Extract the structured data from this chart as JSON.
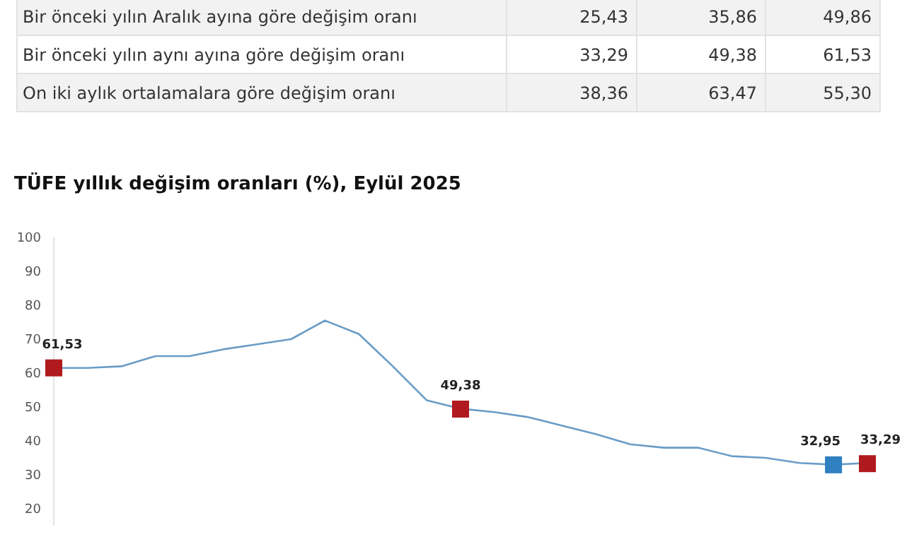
{
  "chart_data": [
    {
      "type": "other",
      "categories": [
        "Bir önceki yılın Aralık ayına göre değişim oranı",
        "Bir önceki yılın aynı ayına göre değişim oranı",
        "On iki aylık ortalamalara göre değişim oranı"
      ],
      "series": [
        {
          "colors": [
            "#f2f2f2",
            "#ffffff",
            "#f2f2f2"
          ],
          "values": [
            25.43,
            33.29,
            38.36
          ],
          "value_labels": [
            "25,43",
            "33,29",
            "38,36"
          ]
        },
        {
          "colors": [
            "#f2f2f2",
            "#ffffff",
            "#f2f2f2"
          ],
          "values": [
            35.86,
            49.38,
            63.47
          ],
          "value_labels": [
            "35,86",
            "49,38",
            "63,47"
          ]
        },
        {
          "colors": [
            "#f2f2f2",
            "#ffffff",
            "#f2f2f2"
          ],
          "values": [
            49.86,
            61.53,
            55.3
          ],
          "value_labels": [
            "49,86",
            "61,53",
            "55,30"
          ]
        }
      ]
    },
    {
      "type": "line",
      "title": "TÜFE yıllık değişim oranları (%), Eylül 2025",
      "categories": [
        null,
        null,
        null,
        null,
        null,
        null,
        null,
        null,
        null,
        null,
        null,
        null,
        null,
        null,
        null,
        null,
        null,
        null,
        null,
        null,
        null,
        null,
        null,
        null,
        null
      ],
      "series": [
        {
          "type": "line",
          "color": "#6a9cc6",
          "marker": "none",
          "values": [
            61.5,
            61.5,
            62,
            65,
            65,
            67,
            68.5,
            70,
            75.5,
            71.5,
            62,
            52,
            49.5,
            48.5,
            47,
            44.5,
            42,
            39,
            38,
            38,
            35.5,
            35,
            33.5,
            33,
            33.5
          ]
        },
        {
          "type": "scatter",
          "marker": "square",
          "colors": [
            "#b01a1f",
            null,
            null,
            null,
            null,
            null,
            null,
            null,
            null,
            null,
            null,
            null,
            "#b01a1f",
            null,
            null,
            null,
            null,
            null,
            null,
            null,
            null,
            null,
            null,
            "#2f7fc1",
            "#b01a1f"
          ],
          "values": [
            61.53,
            null,
            null,
            null,
            null,
            null,
            null,
            null,
            null,
            null,
            null,
            null,
            49.38,
            null,
            null,
            null,
            null,
            null,
            null,
            null,
            null,
            null,
            null,
            32.95,
            33.29
          ],
          "value_labels": [
            "61,53",
            null,
            null,
            null,
            null,
            null,
            null,
            null,
            null,
            null,
            null,
            null,
            "49,38",
            null,
            null,
            null,
            null,
            null,
            null,
            null,
            null,
            null,
            null,
            "32,95",
            "33,29"
          ]
        }
      ],
      "ylim": [
        15,
        100
      ],
      "yticks": [
        20,
        30,
        40,
        50,
        60,
        70,
        80,
        90,
        100
      ],
      "grid": false,
      "tick_labels": "y"
    }
  ]
}
